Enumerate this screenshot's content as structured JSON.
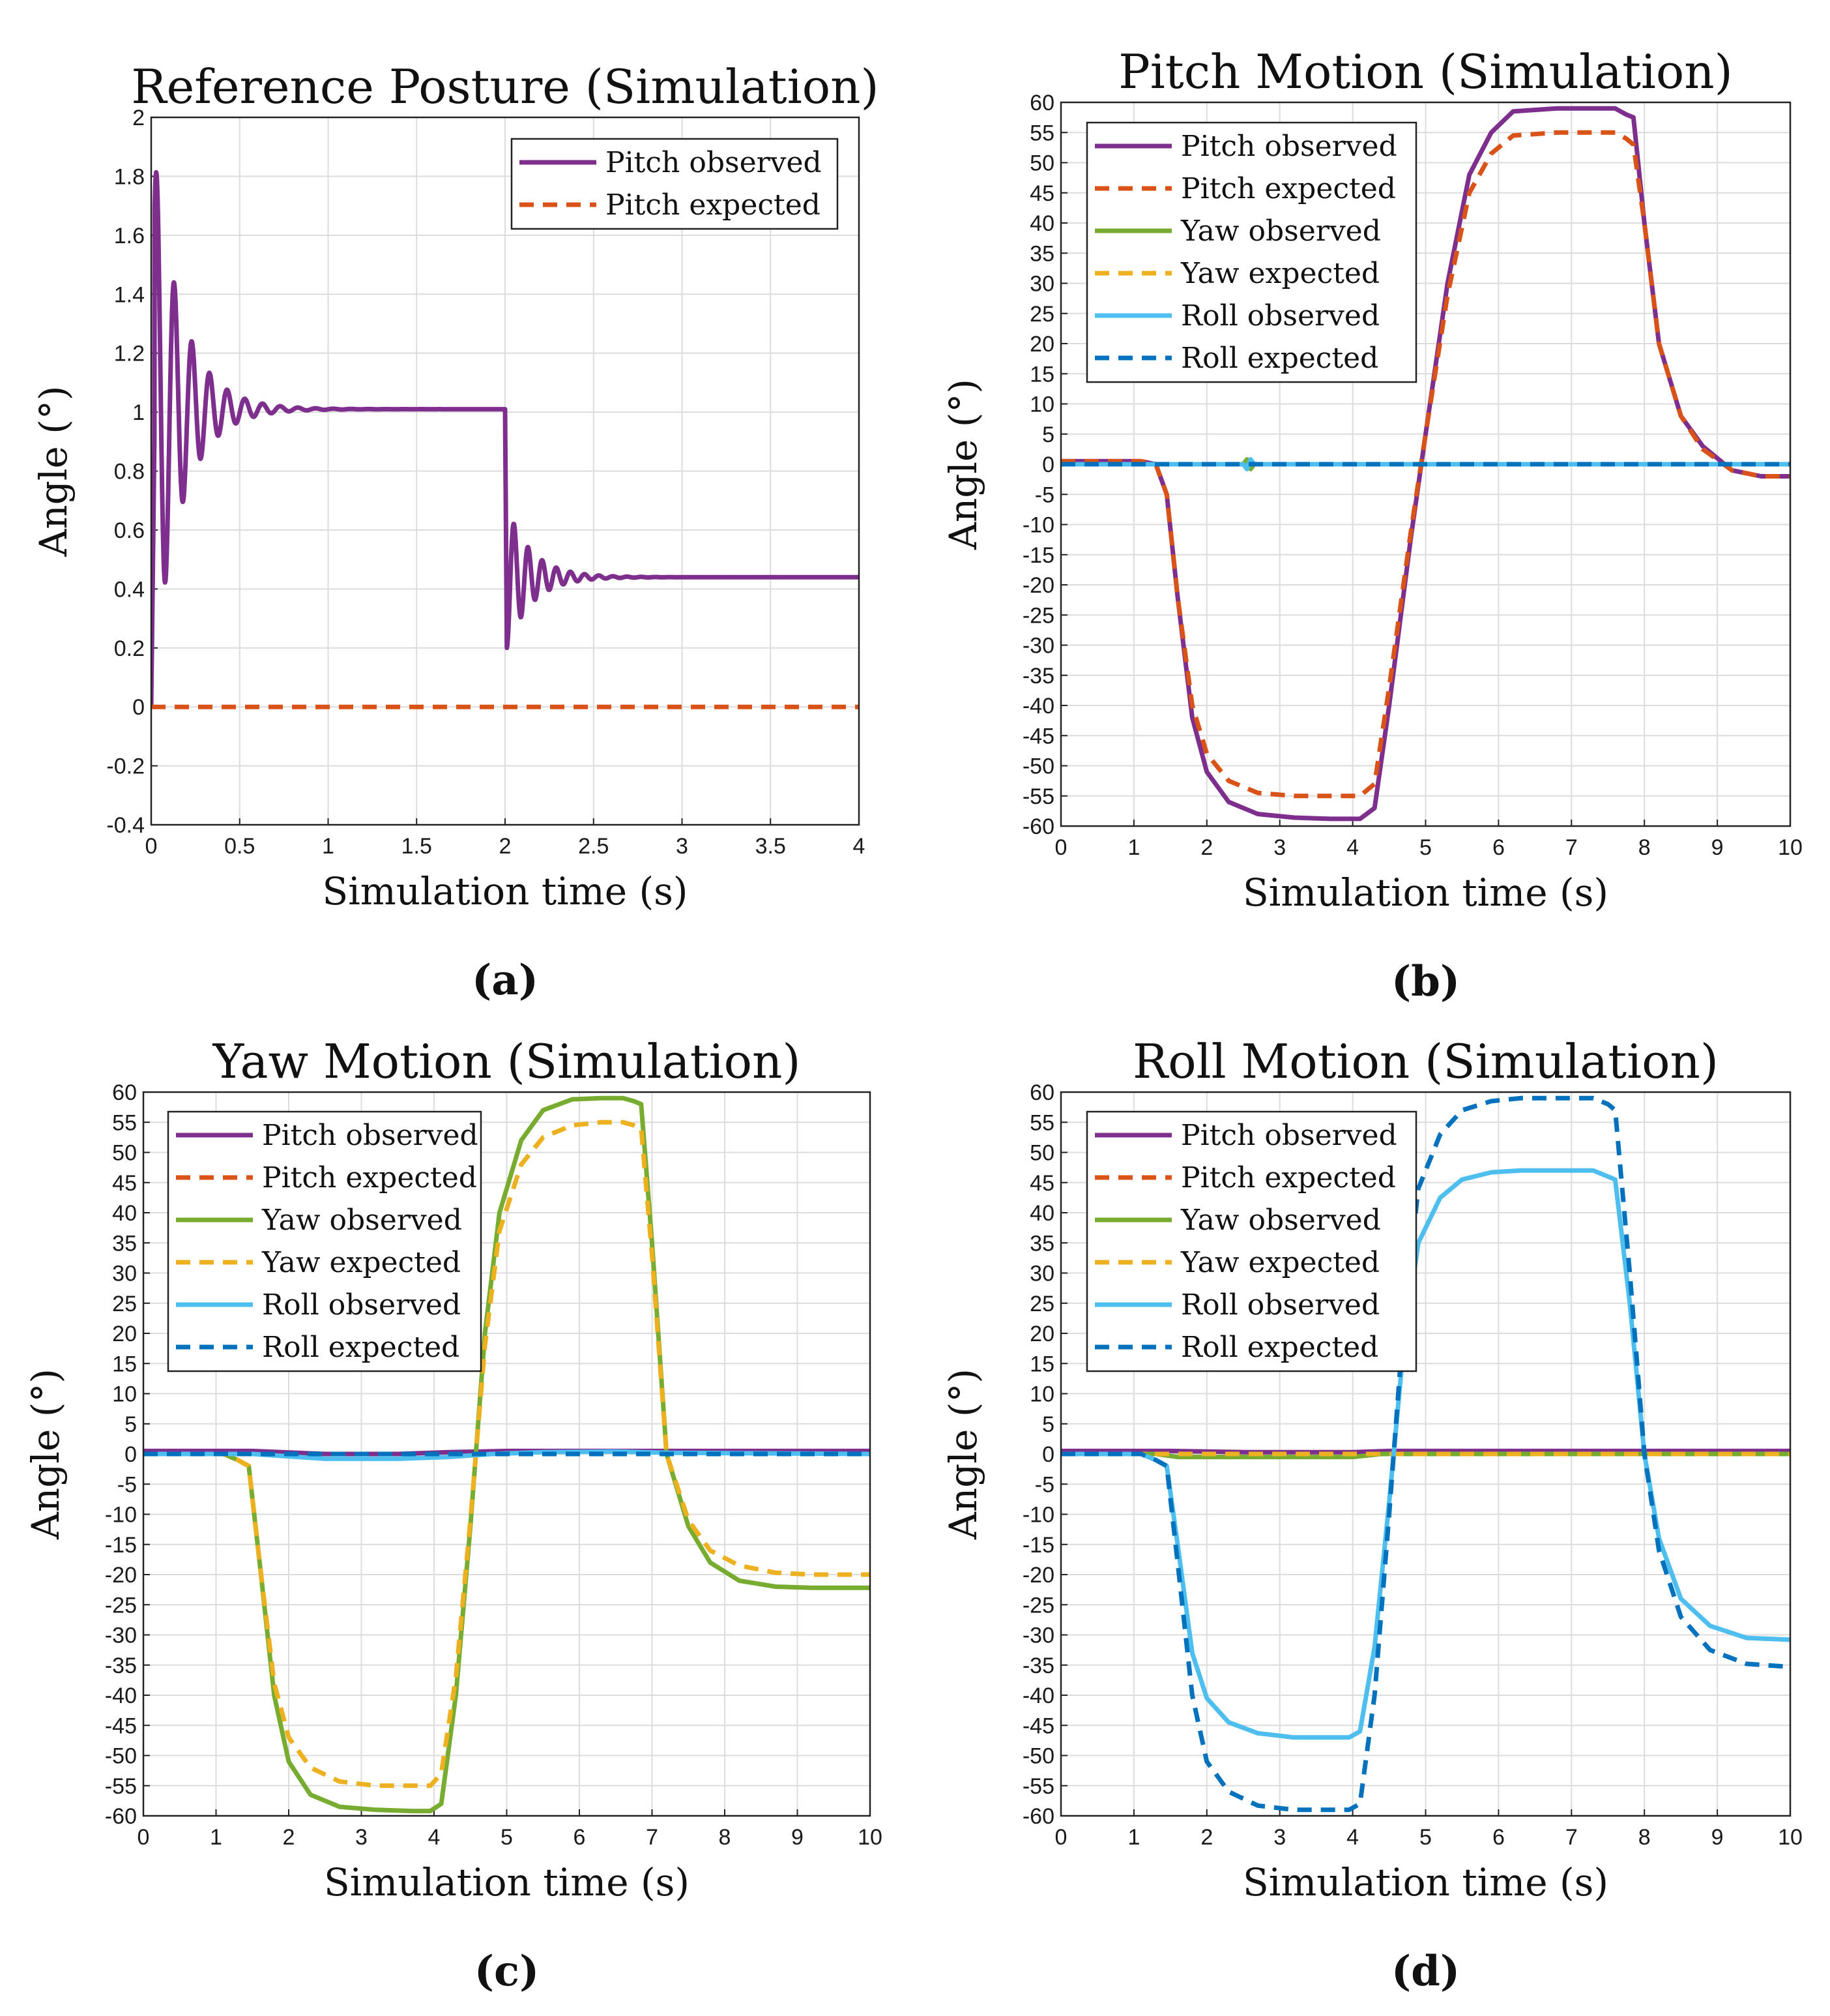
{
  "series_styles": {
    "Pitch observed": {
      "color": "#7E2F8E",
      "dash": false
    },
    "Pitch expected": {
      "color": "#D95319",
      "dash": true
    },
    "Yaw observed": {
      "color": "#77AC30",
      "dash": false
    },
    "Yaw expected": {
      "color": "#EDB120",
      "dash": true
    },
    "Roll observed": {
      "color": "#4DBEEE",
      "dash": false
    },
    "Roll expected": {
      "color": "#0072BD",
      "dash": true
    }
  },
  "chart_data": [
    {
      "id": "a",
      "type": "line",
      "caption": "(a)",
      "title": "Reference Posture (Simulation)",
      "xlabel": "Simulation time (s)",
      "ylabel": "Angle (°)",
      "xlim": [
        0,
        4
      ],
      "ylim": [
        -0.4,
        2
      ],
      "xticks": [
        0,
        0.5,
        1,
        1.5,
        2,
        2.5,
        3,
        3.5,
        4
      ],
      "xtick_labels": [
        "0",
        "0.5",
        "1",
        "1.5",
        "2",
        "2.5",
        "3",
        "3.5",
        "4"
      ],
      "yticks": [
        -0.4,
        -0.2,
        0,
        0.2,
        0.4,
        0.6,
        0.8,
        1,
        1.2,
        1.4,
        1.6,
        1.8,
        2
      ],
      "ytick_labels": [
        "-0.4",
        "-0.2",
        "0",
        "0.2",
        "0.4",
        "0.6",
        "0.8",
        "1",
        "1.2",
        "1.4",
        "1.6",
        "1.8",
        "2"
      ],
      "legend_position": "top-right",
      "grid": true,
      "series": [
        {
          "name": "Pitch observed",
          "generator": "oscillation_a",
          "x": [
            0,
            0.02,
            0.04,
            0.1,
            0.18,
            0.26,
            0.36,
            0.5,
            0.7,
            1.0,
            1.5,
            1.98
          ],
          "y": [
            0,
            1.0,
            1.8,
            0.42,
            1.55,
            0.6,
            1.22,
            0.9,
            1.04,
            1.01,
            1.01,
            1.01
          ]
        },
        {
          "name": "Pitch expected",
          "x": [
            0,
            4
          ],
          "y": [
            0,
            0
          ]
        }
      ]
    },
    {
      "id": "b",
      "type": "line",
      "caption": "(b)",
      "title": "Pitch Motion (Simulation)",
      "xlabel": "Simulation time (s)",
      "ylabel": "Angle (°)",
      "xlim": [
        0,
        10
      ],
      "ylim": [
        -60,
        60
      ],
      "xticks": [
        0,
        1,
        2,
        3,
        4,
        5,
        6,
        7,
        8,
        9,
        10
      ],
      "xtick_labels": [
        "0",
        "1",
        "2",
        "3",
        "4",
        "5",
        "6",
        "7",
        "8",
        "9",
        "10"
      ],
      "yticks": [
        -60,
        -55,
        -50,
        -45,
        -40,
        -35,
        -30,
        -25,
        -20,
        -15,
        -10,
        -5,
        0,
        5,
        10,
        15,
        20,
        25,
        30,
        35,
        40,
        45,
        50,
        55,
        60
      ],
      "ytick_labels": [
        "-60",
        "-55",
        "-50",
        "-45",
        "-40",
        "-35",
        "-30",
        "-25",
        "-20",
        "-15",
        "-10",
        "-5",
        "0",
        "5",
        "10",
        "15",
        "20",
        "25",
        "30",
        "35",
        "40",
        "45",
        "50",
        "55",
        "60"
      ],
      "legend_position": "top-left",
      "grid": true,
      "series": [
        {
          "name": "Pitch observed",
          "x": [
            0,
            1.1,
            1.3,
            1.45,
            1.6,
            1.8,
            2.0,
            2.3,
            2.7,
            3.2,
            3.7,
            4.1,
            4.3,
            4.5,
            4.8,
            5.0,
            5.3,
            5.6,
            5.9,
            6.2,
            6.8,
            7.6,
            7.75,
            7.85,
            8.0,
            8.2,
            8.5,
            8.8,
            9.2,
            9.6,
            10
          ],
          "y": [
            0.5,
            0.5,
            0,
            -5,
            -22,
            -42,
            -51,
            -56,
            -58,
            -58.6,
            -58.8,
            -58.8,
            -57,
            -40,
            -12,
            5,
            30,
            48,
            55,
            58.5,
            59,
            59,
            58,
            57.5,
            40,
            20,
            8,
            3,
            -1,
            -2,
            -2
          ]
        },
        {
          "name": "Pitch expected",
          "x": [
            0,
            1.1,
            1.3,
            1.45,
            1.6,
            1.8,
            2.0,
            2.3,
            2.7,
            3.2,
            3.7,
            4.1,
            4.3,
            4.5,
            4.8,
            5.0,
            5.3,
            5.6,
            5.9,
            6.2,
            6.8,
            7.6,
            7.75,
            7.85,
            8.0,
            8.2,
            8.5,
            8.8,
            9.2,
            9.6,
            10
          ],
          "y": [
            0.5,
            0.5,
            0,
            -5,
            -22,
            -40,
            -48,
            -52.5,
            -54.5,
            -55,
            -55,
            -55,
            -53,
            -37,
            -11,
            5,
            28,
            45,
            51.5,
            54.5,
            55,
            55,
            54,
            53,
            40,
            20,
            8,
            2.5,
            -1,
            -2,
            -2
          ]
        },
        {
          "name": "Yaw observed",
          "x": [
            0,
            2.5,
            2.55,
            2.6,
            2.65,
            10
          ],
          "y": [
            0,
            0,
            0.8,
            -0.8,
            0,
            0
          ]
        },
        {
          "name": "Yaw expected",
          "x": [
            0,
            10
          ],
          "y": [
            0,
            0
          ]
        },
        {
          "name": "Roll observed",
          "x": [
            0,
            2.5,
            2.55,
            2.6,
            2.65,
            10
          ],
          "y": [
            0,
            0,
            -0.8,
            0.8,
            0,
            0
          ]
        },
        {
          "name": "Roll expected",
          "x": [
            0,
            10
          ],
          "y": [
            0,
            0
          ]
        }
      ]
    },
    {
      "id": "c",
      "type": "line",
      "caption": "(c)",
      "title": "Yaw Motion (Simulation)",
      "xlabel": "Simulation time (s)",
      "ylabel": "Angle (°)",
      "xlim": [
        0,
        10
      ],
      "ylim": [
        -60,
        60
      ],
      "xticks": [
        0,
        1,
        2,
        3,
        4,
        5,
        6,
        7,
        8,
        9,
        10
      ],
      "xtick_labels": [
        "0",
        "1",
        "2",
        "3",
        "4",
        "5",
        "6",
        "7",
        "8",
        "9",
        "10"
      ],
      "yticks": [
        -60,
        -55,
        -50,
        -45,
        -40,
        -35,
        -30,
        -25,
        -20,
        -15,
        -10,
        -5,
        0,
        5,
        10,
        15,
        20,
        25,
        30,
        35,
        40,
        45,
        50,
        55,
        60
      ],
      "ytick_labels": [
        "-60",
        "-55",
        "-50",
        "-45",
        "-40",
        "-35",
        "-30",
        "-25",
        "-20",
        "-15",
        "-10",
        "-5",
        "0",
        "5",
        "10",
        "15",
        "20",
        "25",
        "30",
        "35",
        "40",
        "45",
        "50",
        "55",
        "60"
      ],
      "legend_position": "top-left",
      "grid": true,
      "series": [
        {
          "name": "Pitch observed",
          "x": [
            0,
            1.5,
            2.5,
            3.5,
            4.2,
            5,
            10
          ],
          "y": [
            0.5,
            0.5,
            0,
            0,
            0.3,
            0.5,
            0.5
          ]
        },
        {
          "name": "Pitch expected",
          "x": [
            0,
            10
          ],
          "y": [
            0,
            0
          ]
        },
        {
          "name": "Yaw observed",
          "x": [
            0,
            1.1,
            1.3,
            1.45,
            1.6,
            1.8,
            2.0,
            2.3,
            2.7,
            3.2,
            3.7,
            3.95,
            4.1,
            4.3,
            4.5,
            4.7,
            4.9,
            5.2,
            5.5,
            5.9,
            6.3,
            6.6,
            6.75,
            6.85,
            7.0,
            7.2,
            7.5,
            7.8,
            8.2,
            8.7,
            9.2,
            10
          ],
          "y": [
            0,
            0,
            -1,
            -2,
            -18,
            -40,
            -51,
            -56.5,
            -58.5,
            -59,
            -59.2,
            -59.2,
            -58,
            -40,
            -12,
            20,
            40,
            52,
            57,
            58.8,
            59,
            59,
            58.5,
            58,
            35,
            0,
            -12,
            -18,
            -21,
            -22,
            -22.2,
            -22.2
          ]
        },
        {
          "name": "Yaw expected",
          "x": [
            0,
            1.1,
            1.3,
            1.45,
            1.6,
            1.8,
            2.0,
            2.3,
            2.7,
            3.2,
            3.7,
            3.95,
            4.1,
            4.3,
            4.5,
            4.7,
            4.9,
            5.2,
            5.5,
            5.9,
            6.3,
            6.6,
            6.75,
            6.85,
            7.0,
            7.2,
            7.5,
            7.8,
            8.2,
            8.7,
            9.2,
            10
          ],
          "y": [
            0,
            0,
            -1,
            -2,
            -18,
            -38,
            -47,
            -52,
            -54.3,
            -55,
            -55,
            -55,
            -53,
            -37,
            -11,
            18,
            37,
            48,
            52.5,
            54.5,
            55,
            55,
            54.5,
            54,
            33,
            0,
            -11,
            -16,
            -18.5,
            -19.7,
            -20,
            -20
          ]
        },
        {
          "name": "Roll observed",
          "x": [
            0,
            1.5,
            2.5,
            3.5,
            4.2,
            4.8,
            5.5,
            6.5,
            7.2,
            10
          ],
          "y": [
            0,
            0,
            -0.8,
            -0.8,
            -0.5,
            0,
            0.3,
            0.4,
            0.2,
            0
          ]
        },
        {
          "name": "Roll expected",
          "x": [
            0,
            10
          ],
          "y": [
            0,
            0
          ]
        }
      ]
    },
    {
      "id": "d",
      "type": "line",
      "caption": "(d)",
      "title": "Roll Motion (Simulation)",
      "xlabel": "Simulation time (s)",
      "ylabel": "Angle (°)",
      "xlim": [
        0,
        10
      ],
      "ylim": [
        -60,
        60
      ],
      "xticks": [
        0,
        1,
        2,
        3,
        4,
        5,
        6,
        7,
        8,
        9,
        10
      ],
      "xtick_labels": [
        "0",
        "1",
        "2",
        "3",
        "4",
        "5",
        "6",
        "7",
        "8",
        "9",
        "10"
      ],
      "yticks": [
        -60,
        -55,
        -50,
        -45,
        -40,
        -35,
        -30,
        -25,
        -20,
        -15,
        -10,
        -5,
        0,
        5,
        10,
        15,
        20,
        25,
        30,
        35,
        40,
        45,
        50,
        55,
        60
      ],
      "ytick_labels": [
        "-60",
        "-55",
        "-50",
        "-45",
        "-40",
        "-35",
        "-30",
        "-25",
        "-20",
        "-15",
        "-10",
        "-5",
        "0",
        "5",
        "10",
        "15",
        "20",
        "25",
        "30",
        "35",
        "40",
        "45",
        "50",
        "55",
        "60"
      ],
      "legend_position": "top-left",
      "grid": true,
      "series": [
        {
          "name": "Pitch observed",
          "x": [
            0,
            1.5,
            2.5,
            4.0,
            4.5,
            5.0,
            10
          ],
          "y": [
            0.5,
            0.5,
            0.3,
            0.3,
            0.5,
            0.5,
            0.5
          ]
        },
        {
          "name": "Pitch expected",
          "x": [
            0,
            10
          ],
          "y": [
            0,
            0
          ]
        },
        {
          "name": "Yaw observed",
          "x": [
            0,
            1.3,
            1.6,
            2.0,
            4.0,
            4.4,
            5.0,
            10
          ],
          "y": [
            0,
            0,
            -0.5,
            -0.5,
            -0.5,
            0,
            0,
            0
          ]
        },
        {
          "name": "Yaw expected",
          "x": [
            0,
            10
          ],
          "y": [
            0,
            0
          ]
        },
        {
          "name": "Roll observed",
          "x": [
            0,
            1.1,
            1.3,
            1.45,
            1.6,
            1.8,
            2.0,
            2.3,
            2.7,
            3.2,
            3.7,
            3.95,
            4.1,
            4.3,
            4.5,
            4.7,
            4.9,
            5.2,
            5.5,
            5.9,
            6.3,
            7.3,
            7.5,
            7.6,
            7.8,
            8.0,
            8.2,
            8.5,
            8.9,
            9.4,
            10
          ],
          "y": [
            0,
            0,
            -1,
            -2,
            -15,
            -33,
            -40.5,
            -44.5,
            -46.3,
            -47,
            -47,
            -47,
            -46,
            -32,
            -8,
            18,
            35,
            42.5,
            45.5,
            46.7,
            47,
            47,
            46,
            45.5,
            25,
            0,
            -14,
            -24,
            -28.5,
            -30.5,
            -30.8
          ]
        },
        {
          "name": "Roll expected",
          "x": [
            0,
            1.1,
            1.3,
            1.45,
            1.6,
            1.8,
            2.0,
            2.3,
            2.7,
            3.2,
            3.7,
            3.95,
            4.1,
            4.3,
            4.5,
            4.7,
            4.9,
            5.2,
            5.5,
            5.9,
            6.3,
            7.3,
            7.5,
            7.6,
            7.8,
            8.0,
            8.2,
            8.5,
            8.9,
            9.4,
            10
          ],
          "y": [
            0,
            0,
            -1,
            -2,
            -18,
            -40,
            -51,
            -56,
            -58.3,
            -59,
            -59,
            -59,
            -58,
            -40,
            -10,
            22,
            44,
            53,
            57,
            58.5,
            59,
            59,
            58,
            57,
            30,
            0,
            -16,
            -27,
            -32.5,
            -34.8,
            -35.3
          ]
        }
      ]
    }
  ]
}
